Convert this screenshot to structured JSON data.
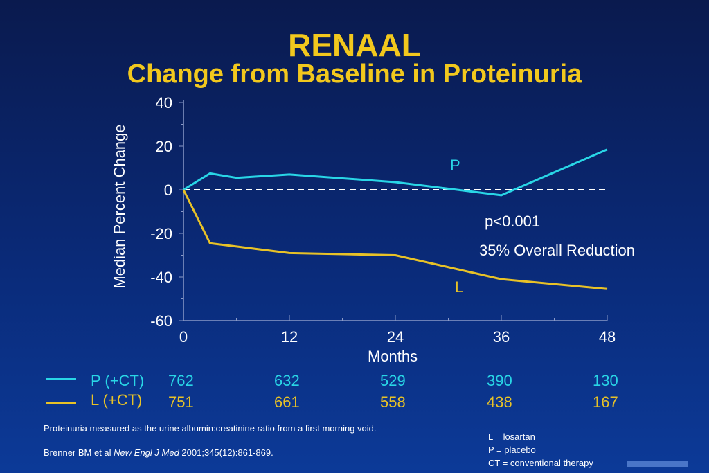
{
  "slide": {
    "title": "RENAAL",
    "subtitle": "Change from Baseline in Proteinuria",
    "footnote": "Proteinuria measured as the urine albumin:creatinine ratio from a first morning void.",
    "citation_prefix": "Brenner BM et al ",
    "citation_journal": "New Engl J  Med",
    "citation_suffix": " 2001;345(12):861-869.",
    "abbreviations": [
      "L = losartan",
      "P = placebo",
      "CT = conventional therapy"
    ]
  },
  "colors": {
    "placebo": "#29d6e6",
    "losartan": "#e8c227",
    "title": "#f2c81d",
    "text": "#ffffff"
  },
  "chart_data": {
    "type": "line",
    "xlabel": "Months",
    "ylabel": "Median Percent Change",
    "xlim": [
      0,
      48
    ],
    "ylim": [
      -60,
      40
    ],
    "xticks": [
      0,
      12,
      24,
      36,
      48
    ],
    "yticks": [
      40,
      20,
      0,
      -20,
      -40,
      -60
    ],
    "reference_line": {
      "y": 0,
      "style": "dashed"
    },
    "series": [
      {
        "name": "P",
        "key": "placebo",
        "x": [
          0,
          3,
          6,
          12,
          24,
          36,
          48
        ],
        "y": [
          0,
          7.5,
          5.5,
          7,
          3.5,
          -2.5,
          18.5
        ]
      },
      {
        "name": "L",
        "key": "losartan",
        "x": [
          0,
          3,
          6,
          12,
          24,
          36,
          48
        ],
        "y": [
          0,
          -24.5,
          -26,
          -29,
          -30,
          -41,
          -45.5
        ]
      }
    ],
    "annotations": {
      "pvalue": "p<0.001",
      "reduction": "35% Overall Reduction",
      "p_label": "P",
      "l_label": "L"
    },
    "patients_at_risk": [
      {
        "label": "P (+CT)",
        "key": "placebo",
        "values": [
          "762",
          "632",
          "529",
          "390",
          "130"
        ]
      },
      {
        "label": "L (+CT)",
        "key": "losartan",
        "values": [
          "751",
          "661",
          "558",
          "438",
          "167"
        ]
      }
    ]
  }
}
